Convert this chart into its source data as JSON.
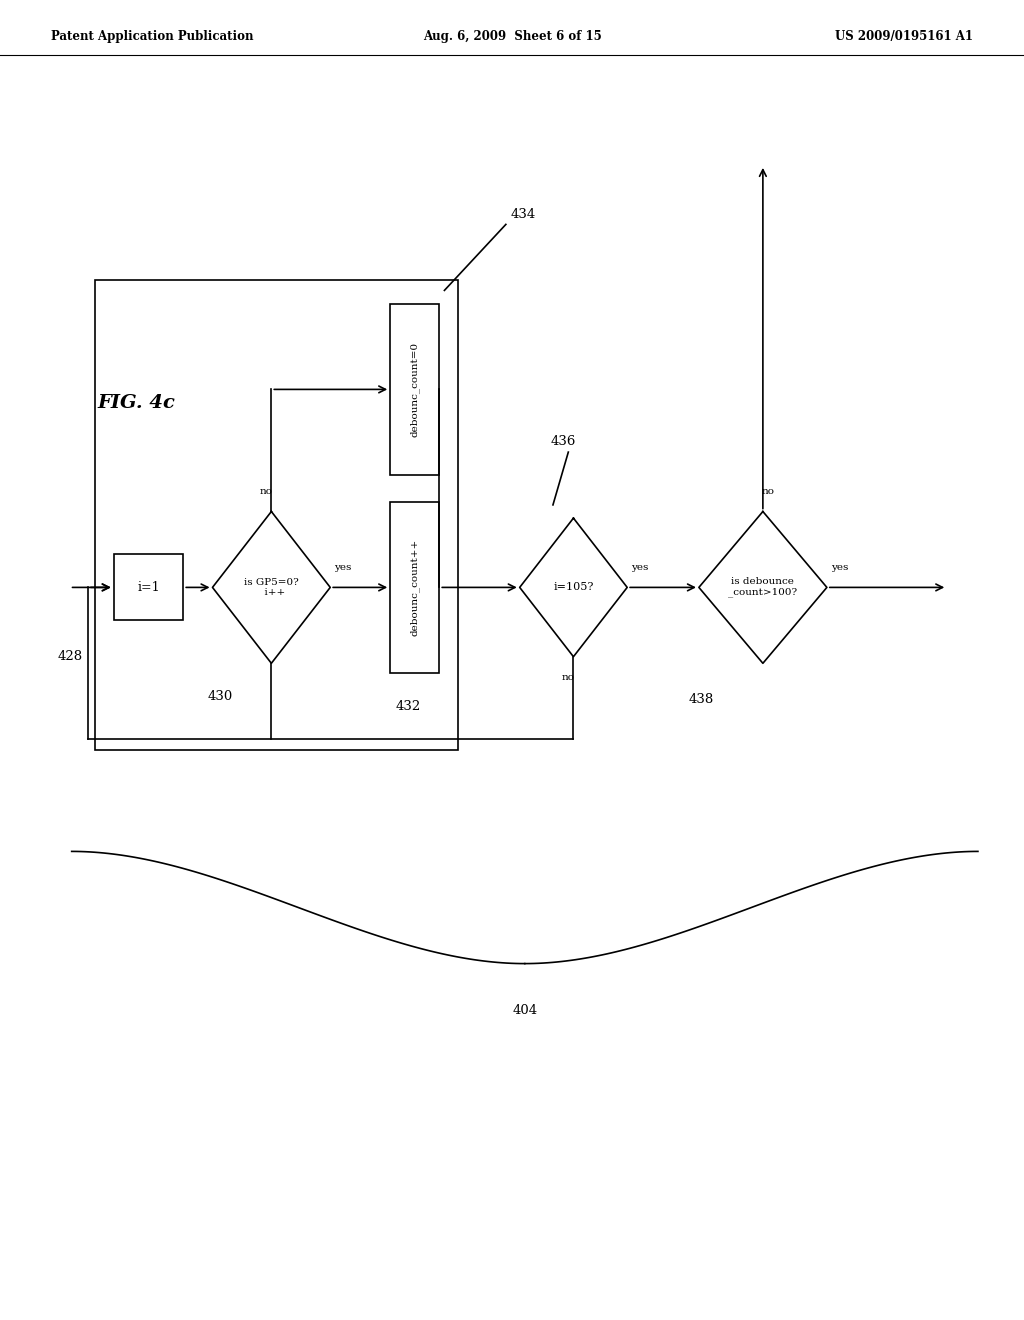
{
  "title": "FIG. 4c",
  "header_left": "Patent Application Publication",
  "header_center": "Aug. 6, 2009  Sheet 6 of 15",
  "header_right": "US 2009/0195161 A1",
  "background_color": "#ffffff",
  "text_color": "#000000"
}
